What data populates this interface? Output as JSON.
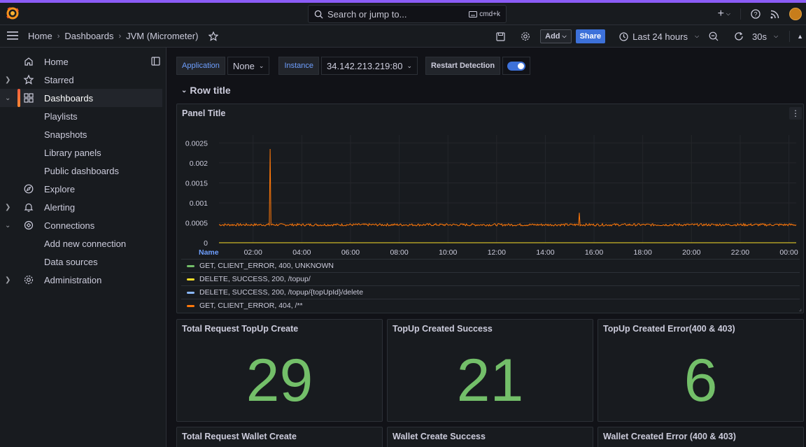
{
  "topbar": {
    "search_label": "Search or jump to...",
    "search_shortcut": "cmd+k",
    "add_symbol": "+"
  },
  "nav": {
    "breadcrumbs": [
      "Home",
      "Dashboards",
      "JVM (Micrometer)"
    ],
    "add_label": "Add",
    "share_label": "Share",
    "time_range": "Last 24 hours",
    "refresh_interval": "30s"
  },
  "sidebar": {
    "items": [
      {
        "label": "Home",
        "icon": "home-icon"
      },
      {
        "label": "Starred",
        "icon": "star-icon"
      },
      {
        "label": "Dashboards",
        "icon": "apps-icon"
      },
      {
        "label": "Playlists"
      },
      {
        "label": "Snapshots"
      },
      {
        "label": "Library panels"
      },
      {
        "label": "Public dashboards"
      },
      {
        "label": "Explore",
        "icon": "compass-icon"
      },
      {
        "label": "Alerting",
        "icon": "bell-icon"
      },
      {
        "label": "Connections",
        "icon": "plug-icon"
      },
      {
        "label": "Add new connection"
      },
      {
        "label": "Data sources"
      },
      {
        "label": "Administration",
        "icon": "cog-icon"
      }
    ]
  },
  "variables": {
    "application_label": "Application",
    "application_value": "None",
    "instance_label": "Instance",
    "instance_value": "34.142.213.219:80",
    "restart_label": "Restart Detection",
    "restart_enabled": true
  },
  "row": {
    "title": "Row title"
  },
  "timeseries_panel": {
    "title": "Panel Title",
    "legend_header": "Name",
    "legend": [
      {
        "name": "GET, CLIENT_ERROR, 400, UNKNOWN",
        "color": "#73bf69"
      },
      {
        "name": "DELETE, SUCCESS, 200, /topup/",
        "color": "#fade2a"
      },
      {
        "name": "DELETE, SUCCESS, 200, /topup/{topUpId}/delete",
        "color": "#8ab8ff"
      },
      {
        "name": "GET, CLIENT_ERROR, 404, /**",
        "color": "#ff780a"
      }
    ]
  },
  "chart_data": {
    "type": "line",
    "title": "Panel Title",
    "x_ticks": [
      "02:00",
      "04:00",
      "06:00",
      "08:00",
      "10:00",
      "12:00",
      "14:00",
      "16:00",
      "18:00",
      "20:00",
      "22:00",
      "00:00"
    ],
    "y_ticks": [
      "0",
      "0.0005",
      "0.001",
      "0.0015",
      "0.002",
      "0.0025"
    ],
    "ylim": [
      0,
      0.0027
    ],
    "x_range_hours": [
      0.6,
      24.3
    ],
    "series": [
      {
        "name": "GET, CLIENT_ERROR, 404, /**",
        "color": "#ff780a",
        "baseline": 0.00045,
        "points": [
          [
            0.6,
            0.00046
          ],
          [
            2.6,
            0.00045
          ],
          [
            2.7,
            0.00235
          ],
          [
            2.8,
            0.00046
          ],
          [
            15.3,
            0.00046
          ],
          [
            15.4,
            0.00075
          ],
          [
            15.5,
            0.00046
          ],
          [
            24.3,
            0.00046
          ]
        ]
      },
      {
        "name": "DELETE, SUCCESS, 200, /topup/",
        "color": "#fade2a",
        "baseline": 0.0,
        "points": [
          [
            0.6,
            0.0
          ],
          [
            24.3,
            0.0
          ]
        ]
      },
      {
        "name": "GET, CLIENT_ERROR, 400, UNKNOWN",
        "color": "#73bf69",
        "baseline": 0.0,
        "points": [
          [
            0.6,
            0.0
          ],
          [
            24.3,
            0.0
          ]
        ]
      },
      {
        "name": "DELETE, SUCCESS, 200, /topup/{topUpId}/delete",
        "color": "#8ab8ff",
        "baseline": 0.0,
        "points": [
          [
            0.6,
            0.0
          ],
          [
            24.3,
            0.0
          ]
        ]
      }
    ],
    "grid": true
  },
  "stats": [
    {
      "title": "Total Request TopUp Create",
      "value": "29"
    },
    {
      "title": "TopUp Created Success",
      "value": "21"
    },
    {
      "title": "TopUp Created Error(400 & 403)",
      "value": "6"
    },
    {
      "title": "Total Request Wallet Create"
    },
    {
      "title": "Wallet Create Success"
    },
    {
      "title": "Wallet Created Error (400 & 403)"
    }
  ]
}
